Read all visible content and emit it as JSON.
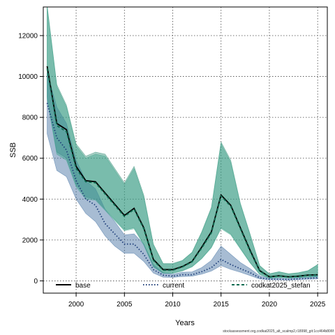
{
  "chart_data": {
    "type": "line",
    "xlabel": "Years",
    "ylabel": "SSB",
    "xlim": [
      1996.6,
      2026.0
    ],
    "ylim": [
      -600,
      13400
    ],
    "xticks": [
      2000,
      2005,
      2010,
      2015,
      2020,
      2025
    ],
    "yticks": [
      0,
      2000,
      4000,
      6000,
      8000,
      10000,
      12000
    ],
    "grid": true,
    "legend_position": "bottom",
    "x": [
      1997,
      1998,
      1999,
      2000,
      2001,
      2002,
      2003,
      2004,
      2005,
      2006,
      2007,
      2008,
      2009,
      2010,
      2011,
      2012,
      2013,
      2014,
      2015,
      2016,
      2017,
      2018,
      2019,
      2020,
      2021,
      2022,
      2023,
      2024,
      2025
    ],
    "series": [
      {
        "name": "base",
        "color": "#000000",
        "style": "solid",
        "values": [
          10500,
          7700,
          7400,
          5600,
          4900,
          4850,
          4300,
          3750,
          3200,
          3550,
          2600,
          1050,
          550,
          550,
          700,
          950,
          1650,
          2400,
          4200,
          3700,
          2600,
          1500,
          500,
          200,
          250,
          200,
          230,
          280,
          300
        ],
        "band_color": "#2e8b73",
        "band_lower": [
          9000,
          6300,
          6000,
          4700,
          4100,
          4000,
          3500,
          3000,
          2500,
          2600,
          1800,
          700,
          380,
          380,
          500,
          700,
          1100,
          1650,
          2600,
          2300,
          1600,
          900,
          320,
          140,
          170,
          150,
          170,
          190,
          210
        ],
        "band_upper": [
          13500,
          9600,
          8600,
          6700,
          6100,
          6300,
          6200,
          5500,
          4800,
          5600,
          4200,
          1800,
          850,
          850,
          1000,
          1400,
          2400,
          3600,
          6800,
          5900,
          3800,
          2300,
          750,
          350,
          450,
          350,
          400,
          500,
          800
        ]
      },
      {
        "name": "current",
        "color": "#1f3f7a",
        "style": "dotted",
        "values": [
          8700,
          7000,
          6400,
          4900,
          4000,
          3700,
          2800,
          2300,
          1800,
          1800,
          1300,
          550,
          280,
          230,
          300,
          300,
          450,
          650,
          1050,
          800,
          600,
          400,
          150,
          80,
          80,
          70,
          100,
          120,
          150
        ],
        "band_color": "#3b6a9e",
        "band_lower": [
          7200,
          5400,
          5100,
          4000,
          3300,
          2900,
          2200,
          1700,
          1350,
          1350,
          950,
          380,
          180,
          170,
          210,
          230,
          330,
          480,
          750,
          560,
          420,
          260,
          90,
          50,
          50,
          40,
          60,
          80,
          90
        ],
        "band_upper": [
          10200,
          8500,
          7700,
          5900,
          4900,
          4500,
          3500,
          2900,
          2250,
          2300,
          1800,
          800,
          400,
          330,
          420,
          440,
          650,
          1000,
          1700,
          1300,
          900,
          600,
          250,
          130,
          130,
          110,
          160,
          190,
          260
        ]
      },
      {
        "name": "codkat2025_stefan",
        "color": "#0e6b50",
        "style": "dashed",
        "values": [
          10400,
          7600,
          7300,
          5500,
          4850,
          4800,
          4250,
          3700,
          3150,
          3500,
          2550,
          1000,
          520,
          520,
          680,
          930,
          1600,
          2350,
          4150,
          3650,
          2550,
          1450,
          480,
          190,
          240,
          190,
          220,
          270,
          290
        ],
        "band_color": "#3aa58a",
        "band_lower": [
          8900,
          6200,
          5900,
          4600,
          4000,
          3950,
          3450,
          2950,
          2450,
          2550,
          1750,
          680,
          370,
          370,
          480,
          680,
          1080,
          1620,
          2550,
          2250,
          1560,
          880,
          310,
          130,
          160,
          140,
          160,
          180,
          200
        ],
        "band_upper": [
          13400,
          9500,
          8500,
          6600,
          6000,
          6200,
          6100,
          5400,
          4700,
          5500,
          4100,
          1750,
          830,
          830,
          980,
          1380,
          2350,
          3550,
          6700,
          5800,
          3750,
          2250,
          730,
          340,
          440,
          340,
          390,
          490,
          790
        ]
      }
    ]
  },
  "footer": {
    "credit": "stockassessment.org,codkat2025_alt_scalmp2,r18998_git:1cc464b806f"
  }
}
